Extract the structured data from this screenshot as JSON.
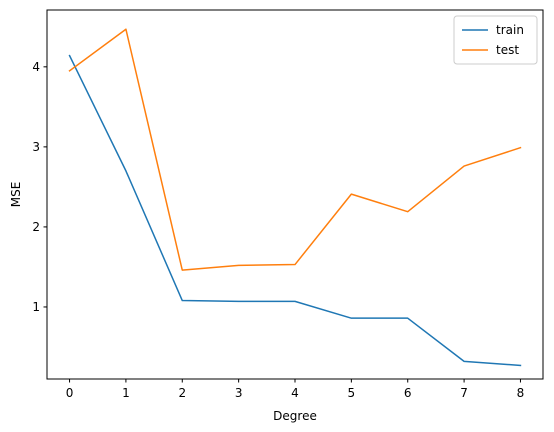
{
  "chart_data": {
    "type": "line",
    "title": "",
    "xlabel": "Degree",
    "ylabel": "MSE",
    "x": [
      0,
      1,
      2,
      3,
      4,
      5,
      6,
      7,
      8
    ],
    "xticks": [
      "0",
      "1",
      "2",
      "3",
      "4",
      "5",
      "6",
      "7",
      "8"
    ],
    "yticks": [
      "1",
      "2",
      "3",
      "4"
    ],
    "xlim": [
      -0.4,
      8.4
    ],
    "ylim": [
      0.1,
      4.71
    ],
    "grid": false,
    "legend_position": "top-right",
    "series": [
      {
        "name": "train",
        "color": "#1f77b4",
        "values": [
          4.14,
          2.7,
          1.08,
          1.07,
          1.07,
          0.86,
          0.86,
          0.32,
          0.27
        ]
      },
      {
        "name": "test",
        "color": "#ff7f0e",
        "values": [
          3.95,
          4.47,
          1.46,
          1.52,
          1.53,
          2.41,
          2.19,
          2.76,
          2.99
        ]
      }
    ]
  }
}
